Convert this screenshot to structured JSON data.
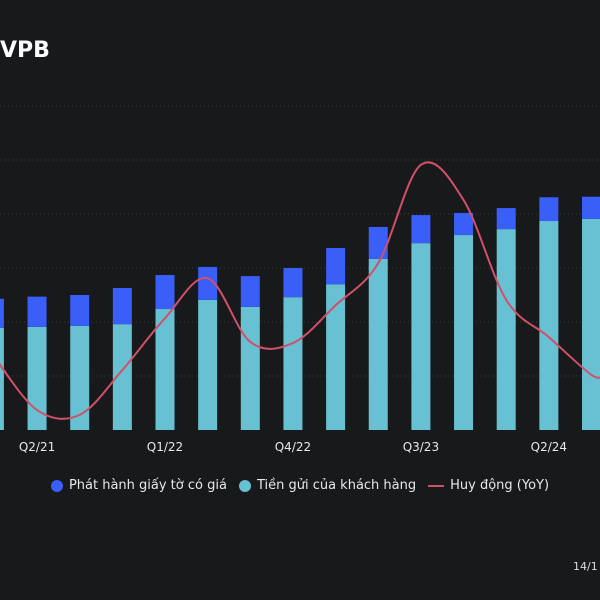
{
  "title": "VPB",
  "footer": "14/1",
  "colors": {
    "background": "#18191b",
    "bond": "#3a5ef8",
    "deposit": "#67c1d3",
    "line": "#d0506a",
    "grid": "#3a3b3e",
    "text": "#e8e8e8"
  },
  "chart_data": {
    "type": "bar",
    "stacked": true,
    "categories": [
      "Q1/21",
      "Q2/21",
      "Q3/21",
      "Q4/21",
      "Q1/22",
      "Q2/22",
      "Q3/22",
      "Q4/22",
      "Q1/23",
      "Q2/23",
      "Q3/23",
      "Q4/23",
      "Q1/24",
      "Q2/24",
      "Q3/24"
    ],
    "visible_tick_labels": [
      "Q2/21",
      "Q1/22",
      "Q4/22",
      "Q3/23",
      "Q2/24"
    ],
    "series": [
      {
        "name": "Tiền gửi của khách hàng",
        "type": "bar",
        "color": "#67c1d3",
        "values": [
          1.89,
          1.91,
          1.93,
          1.96,
          2.24,
          2.41,
          2.28,
          2.46,
          2.7,
          3.17,
          3.46,
          3.61,
          3.72,
          3.87,
          3.91
        ]
      },
      {
        "name": "Phát hành giấy tờ có giá",
        "type": "bar",
        "color": "#3a5ef8",
        "values": [
          0.54,
          0.56,
          0.57,
          0.67,
          0.63,
          0.61,
          0.57,
          0.54,
          0.67,
          0.59,
          0.52,
          0.41,
          0.39,
          0.44,
          0.41
        ]
      },
      {
        "name": "Huy động (YoY)",
        "type": "line",
        "color": "#d0506a",
        "axis": "secondary",
        "values": [
          1.35,
          0.37,
          0.28,
          1.11,
          2.07,
          2.81,
          1.63,
          1.61,
          2.31,
          3.09,
          4.91,
          4.26,
          2.41,
          1.72,
          1.02
        ]
      }
    ],
    "ylim": [
      0,
      6
    ],
    "y_tick_labels_visible": false,
    "grid": true,
    "legend": "bottom"
  },
  "legend": [
    {
      "label": "Phát hành giấy tờ có giá",
      "shape": "circle",
      "color": "#3a5ef8"
    },
    {
      "label": "Tiền gửi của khách hàng",
      "shape": "circle",
      "color": "#67c1d3"
    },
    {
      "label": "Huy động (YoY)",
      "shape": "line",
      "color": "#d0506a"
    }
  ]
}
